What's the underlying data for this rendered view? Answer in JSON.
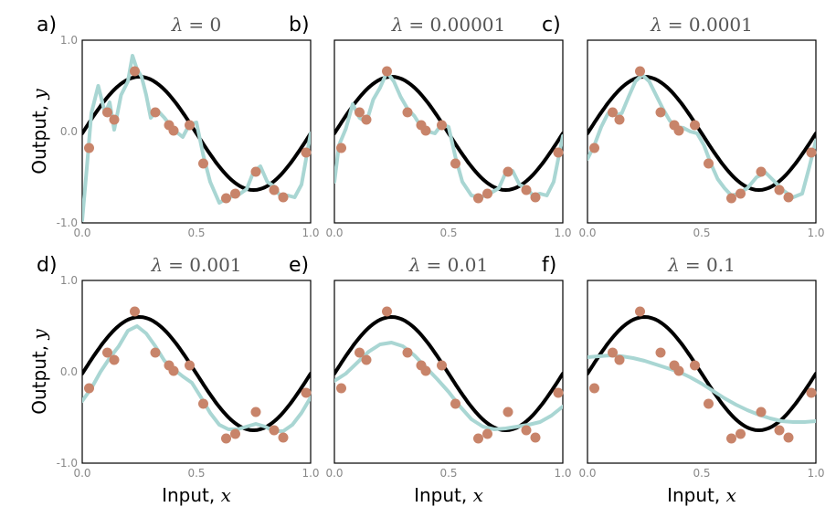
{
  "chart_data": {
    "type": "line",
    "axis": {
      "xlim": [
        0.0,
        1.0
      ],
      "ylim": [
        -1.0,
        1.0
      ],
      "x_ticks": [
        "0.0",
        "0.5",
        "1.0"
      ],
      "y_ticks": [
        "1.0",
        "0.0",
        "-1.0"
      ],
      "xlabel_main": "Input, ",
      "xlabel_var": "x",
      "ylabel_main": "Output, ",
      "ylabel_var": "y"
    },
    "colors": {
      "truth": "#000000",
      "fit": "#a9d6d3",
      "points": "#c8846a"
    },
    "data_points": {
      "x": [
        0.03,
        0.11,
        0.14,
        0.23,
        0.32,
        0.38,
        0.4,
        0.47,
        0.53,
        0.63,
        0.67,
        0.76,
        0.84,
        0.88,
        0.98
      ],
      "y": [
        -0.18,
        0.21,
        0.13,
        0.66,
        0.21,
        0.07,
        0.01,
        0.07,
        -0.35,
        -0.73,
        -0.68,
        -0.44,
        -0.64,
        -0.72,
        -0.23
      ]
    },
    "true_function": "sin(2*pi*x)*0.6 offset",
    "panels": [
      {
        "label": "a)",
        "lambda_prefix": "λ",
        "lambda_value": "= 0",
        "fit": {
          "x": [
            0.0,
            0.02,
            0.04,
            0.07,
            0.1,
            0.12,
            0.14,
            0.17,
            0.2,
            0.22,
            0.24,
            0.26,
            0.28,
            0.3,
            0.33,
            0.36,
            0.39,
            0.41,
            0.44,
            0.47,
            0.5,
            0.53,
            0.56,
            0.6,
            0.64,
            0.68,
            0.72,
            0.75,
            0.78,
            0.81,
            0.84,
            0.87,
            0.9,
            0.93,
            0.96,
            1.0
          ],
          "y": [
            -0.97,
            -0.4,
            0.2,
            0.5,
            0.2,
            0.32,
            0.02,
            0.4,
            0.55,
            0.83,
            0.68,
            0.6,
            0.4,
            0.15,
            0.23,
            0.15,
            0.05,
            0.0,
            -0.06,
            0.08,
            0.1,
            -0.26,
            -0.55,
            -0.78,
            -0.72,
            -0.7,
            -0.63,
            -0.44,
            -0.38,
            -0.55,
            -0.6,
            -0.72,
            -0.7,
            -0.72,
            -0.58,
            -0.02
          ]
        }
      },
      {
        "label": "b)",
        "lambda_prefix": "λ",
        "lambda_value": "= 0.00001",
        "fit": {
          "x": [
            0.0,
            0.02,
            0.05,
            0.08,
            0.11,
            0.14,
            0.17,
            0.2,
            0.23,
            0.26,
            0.29,
            0.32,
            0.35,
            0.38,
            0.41,
            0.44,
            0.47,
            0.5,
            0.53,
            0.56,
            0.6,
            0.64,
            0.68,
            0.72,
            0.75,
            0.78,
            0.81,
            0.84,
            0.87,
            0.9,
            0.93,
            0.96,
            1.0
          ],
          "y": [
            -0.55,
            -0.15,
            0.03,
            0.3,
            0.15,
            0.1,
            0.35,
            0.48,
            0.65,
            0.55,
            0.38,
            0.25,
            0.17,
            0.05,
            0.0,
            -0.02,
            0.08,
            0.05,
            -0.28,
            -0.55,
            -0.7,
            -0.72,
            -0.68,
            -0.62,
            -0.45,
            -0.43,
            -0.58,
            -0.62,
            -0.7,
            -0.68,
            -0.7,
            -0.55,
            -0.05
          ]
        }
      },
      {
        "label": "c)",
        "lambda_prefix": "λ",
        "lambda_value": "= 0.0001",
        "fit": {
          "x": [
            0.0,
            0.03,
            0.06,
            0.09,
            0.12,
            0.15,
            0.18,
            0.21,
            0.24,
            0.27,
            0.3,
            0.33,
            0.36,
            0.39,
            0.42,
            0.45,
            0.48,
            0.51,
            0.54,
            0.57,
            0.6,
            0.63,
            0.66,
            0.7,
            0.74,
            0.78,
            0.82,
            0.86,
            0.9,
            0.94,
            0.97,
            1.0
          ],
          "y": [
            -0.3,
            -0.15,
            0.05,
            0.2,
            0.18,
            0.2,
            0.38,
            0.55,
            0.62,
            0.55,
            0.4,
            0.25,
            0.12,
            0.05,
            0.04,
            0.0,
            -0.02,
            -0.15,
            -0.35,
            -0.52,
            -0.62,
            -0.7,
            -0.68,
            -0.62,
            -0.5,
            -0.45,
            -0.55,
            -0.65,
            -0.72,
            -0.68,
            -0.4,
            -0.1
          ]
        }
      },
      {
        "label": "d)",
        "lambda_prefix": "λ",
        "lambda_value": "= 0.001",
        "fit": {
          "x": [
            0.0,
            0.04,
            0.08,
            0.12,
            0.16,
            0.2,
            0.24,
            0.28,
            0.32,
            0.36,
            0.4,
            0.44,
            0.48,
            0.52,
            0.56,
            0.6,
            0.64,
            0.68,
            0.72,
            0.76,
            0.8,
            0.84,
            0.88,
            0.92,
            0.96,
            1.0
          ],
          "y": [
            -0.32,
            -0.18,
            0.0,
            0.15,
            0.28,
            0.45,
            0.5,
            0.42,
            0.28,
            0.12,
            0.03,
            -0.05,
            -0.12,
            -0.28,
            -0.45,
            -0.58,
            -0.63,
            -0.63,
            -0.6,
            -0.57,
            -0.6,
            -0.65,
            -0.65,
            -0.58,
            -0.45,
            -0.28
          ]
        }
      },
      {
        "label": "e)",
        "lambda_prefix": "λ",
        "lambda_value": "= 0.01",
        "fit": {
          "x": [
            0.0,
            0.05,
            0.1,
            0.15,
            0.2,
            0.25,
            0.3,
            0.35,
            0.4,
            0.45,
            0.5,
            0.55,
            0.6,
            0.65,
            0.7,
            0.75,
            0.8,
            0.85,
            0.9,
            0.95,
            1.0
          ],
          "y": [
            -0.1,
            -0.02,
            0.1,
            0.22,
            0.3,
            0.32,
            0.28,
            0.18,
            0.05,
            -0.08,
            -0.22,
            -0.38,
            -0.52,
            -0.6,
            -0.63,
            -0.62,
            -0.6,
            -0.58,
            -0.55,
            -0.48,
            -0.38
          ]
        }
      },
      {
        "label": "f)",
        "lambda_prefix": "λ",
        "lambda_value": "= 0.1",
        "fit": {
          "x": [
            0.0,
            0.05,
            0.1,
            0.15,
            0.2,
            0.25,
            0.3,
            0.35,
            0.4,
            0.45,
            0.5,
            0.55,
            0.6,
            0.65,
            0.7,
            0.75,
            0.8,
            0.85,
            0.9,
            0.95,
            1.0
          ],
          "y": [
            0.16,
            0.17,
            0.18,
            0.17,
            0.15,
            0.12,
            0.08,
            0.04,
            0.0,
            -0.06,
            -0.13,
            -0.21,
            -0.29,
            -0.36,
            -0.42,
            -0.47,
            -0.51,
            -0.54,
            -0.55,
            -0.55,
            -0.54
          ]
        }
      }
    ]
  }
}
